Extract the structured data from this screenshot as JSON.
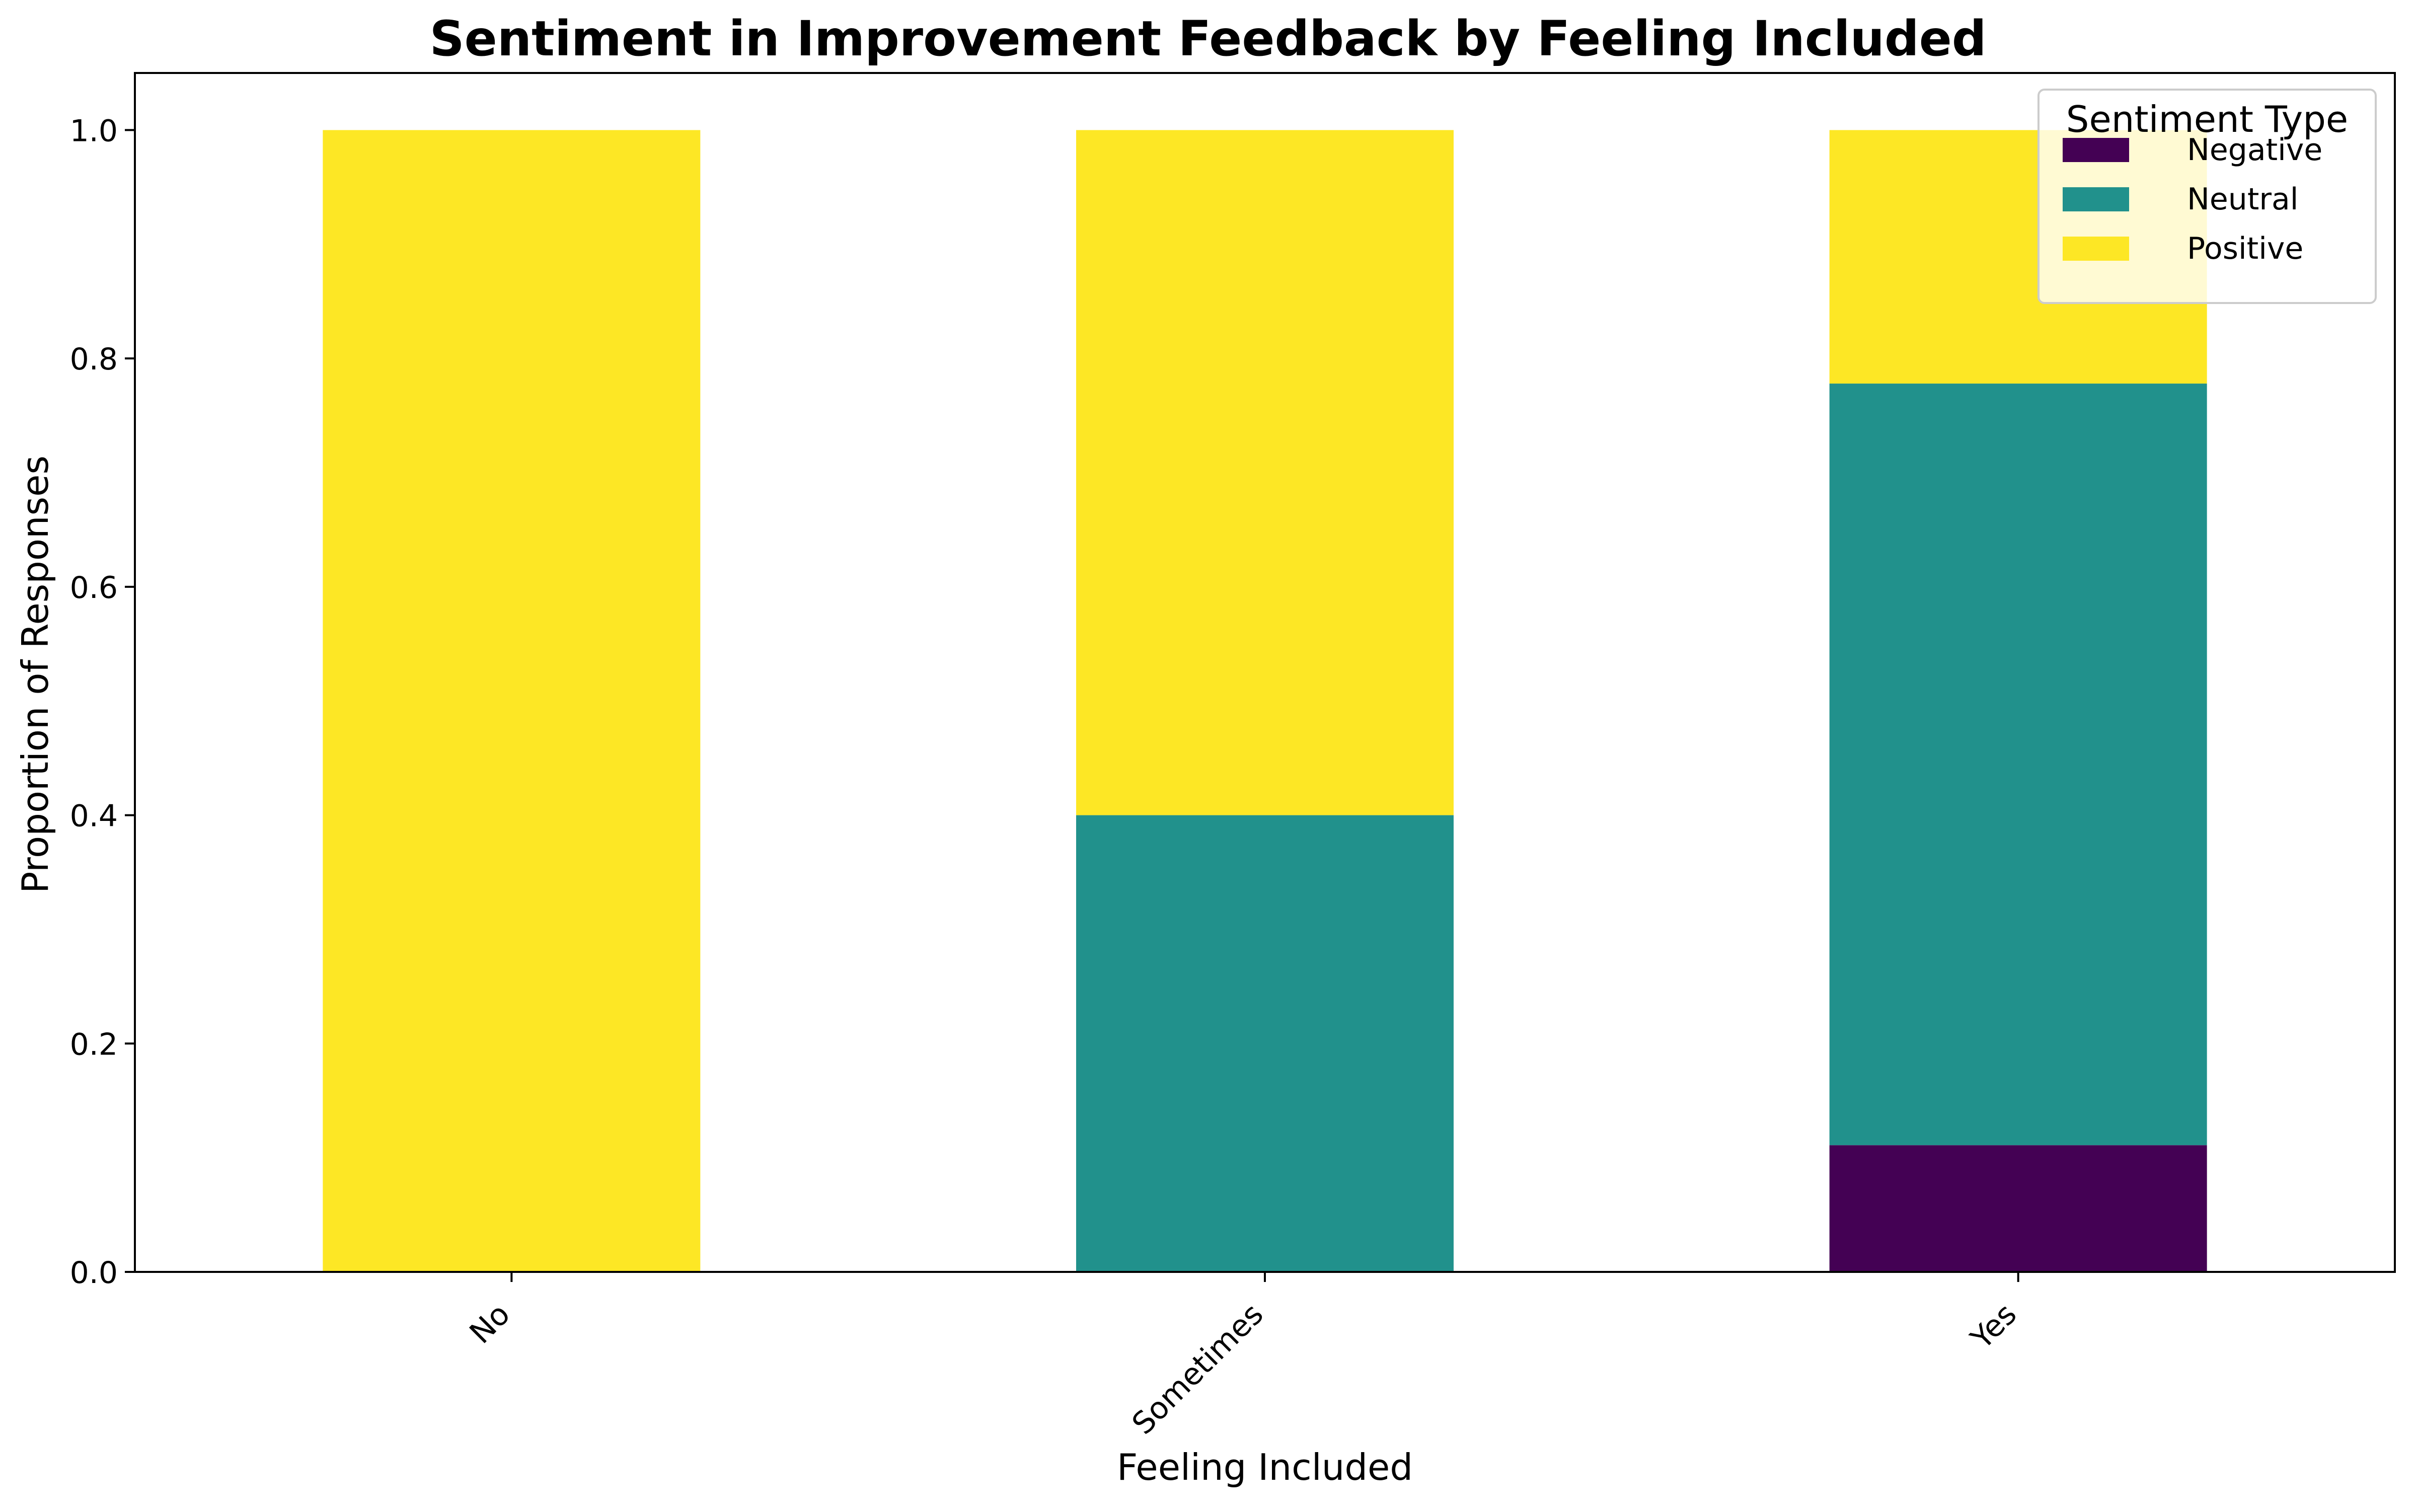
{
  "chart_data": {
    "type": "bar",
    "stacked": true,
    "title": "Sentiment in Improvement Feedback by Feeling Included",
    "xlabel": "Feeling Included",
    "ylabel": "Proportion of Responses",
    "categories": [
      "No",
      "Sometimes",
      "Yes"
    ],
    "series": [
      {
        "name": "Negative",
        "color": "#440154",
        "values": [
          0.0,
          0.0,
          0.111
        ]
      },
      {
        "name": "Neutral",
        "color": "#21918c",
        "values": [
          0.0,
          0.4,
          0.667
        ]
      },
      {
        "name": "Positive",
        "color": "#fde725",
        "values": [
          1.0,
          0.6,
          0.222
        ]
      }
    ],
    "ylim": [
      0,
      1.05
    ],
    "yticks": [
      0.0,
      0.2,
      0.4,
      0.6,
      0.8,
      1.0
    ],
    "ytick_labels": [
      "0.0",
      "0.2",
      "0.4",
      "0.6",
      "0.8",
      "1.0"
    ],
    "grid": false,
    "legend": {
      "title": "Sentiment Type",
      "placement": "top-right"
    }
  }
}
